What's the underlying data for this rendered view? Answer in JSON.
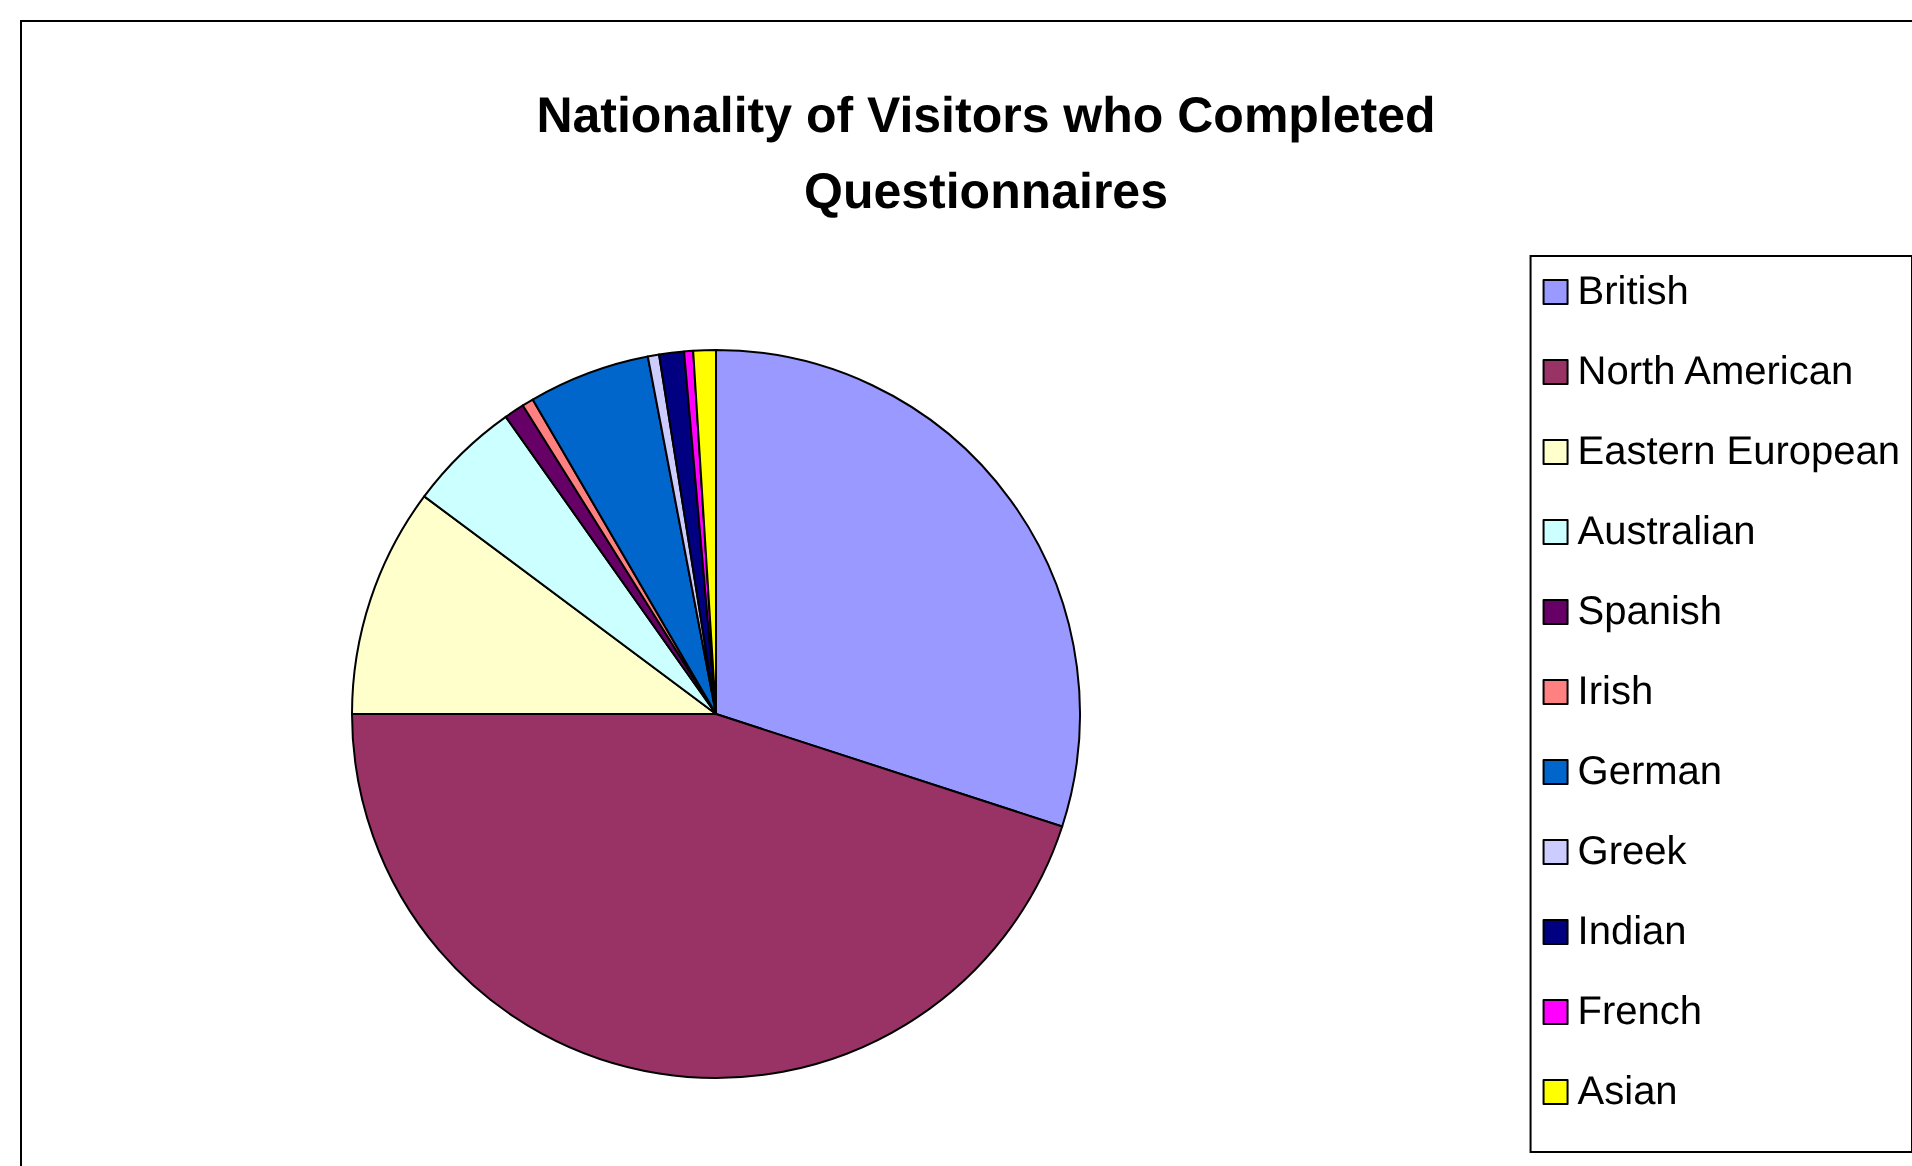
{
  "chart_data": {
    "type": "pie",
    "title": "Nationality of Visitors who Completed\nQuestionnaires",
    "categories": [
      "British",
      "North American",
      "Eastern European",
      "Australian",
      "Spanish",
      "Irish",
      "German",
      "Greek",
      "Indian",
      "French",
      "Asian"
    ],
    "values": [
      30,
      45,
      10.2,
      5,
      0.9,
      0.5,
      5.4,
      0.5,
      1.1,
      0.4,
      1.0
    ],
    "colors": [
      "#9999ff",
      "#993366",
      "#ffffcc",
      "#ccffff",
      "#660066",
      "#ff8080",
      "#0066cc",
      "#ccccff",
      "#000080",
      "#ff00ff",
      "#ffff00"
    ],
    "legend": "right"
  }
}
